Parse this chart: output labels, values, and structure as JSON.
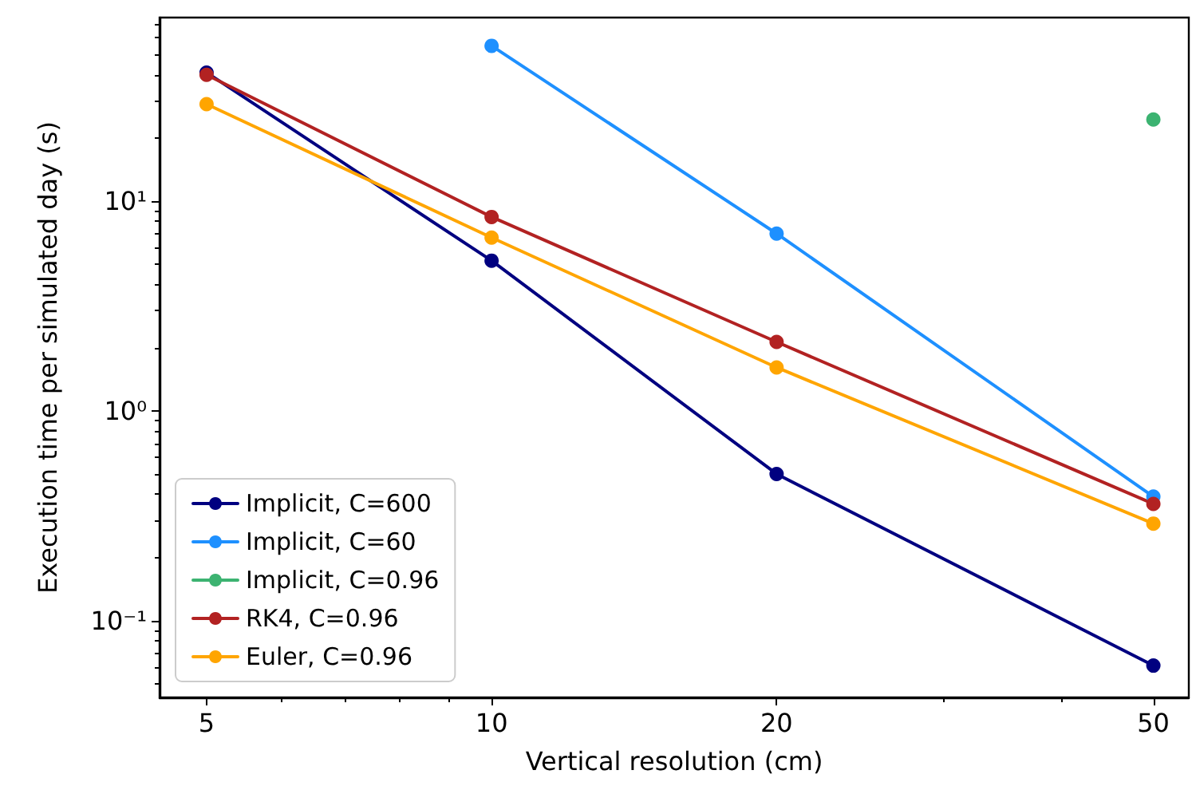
{
  "chart_data": {
    "type": "line",
    "xlabel": "Vertical resolution (cm)",
    "ylabel": "Execution time per simulated day (s)",
    "log": "xy",
    "grid": false,
    "legend": "bottom left",
    "marker": "circle",
    "line_style": "solid",
    "x": [
      5,
      10,
      20,
      50
    ],
    "xlim": [
      4.46,
      54.5
    ],
    "ylim": [
      0.043,
      75
    ],
    "xticks": [
      5,
      {
        "value": 6,
        "label": null
      },
      {
        "value": 7,
        "label": null
      },
      {
        "value": 8,
        "label": null
      },
      {
        "value": 9,
        "label": null
      },
      10,
      20,
      {
        "value": 30,
        "label": null
      },
      {
        "value": 40,
        "label": null
      },
      50
    ],
    "yticks": [
      {
        "value": 0.05,
        "label": null
      },
      {
        "value": 0.06,
        "label": null
      },
      {
        "value": 0.07,
        "label": null
      },
      {
        "value": 0.08,
        "label": null
      },
      {
        "value": 0.09,
        "label": null
      },
      {
        "value": 0.1,
        "label": "10⁻¹"
      },
      {
        "value": 0.2,
        "label": null
      },
      {
        "value": 0.3,
        "label": null
      },
      {
        "value": 0.4,
        "label": null
      },
      {
        "value": 0.5,
        "label": null
      },
      {
        "value": 0.6,
        "label": null
      },
      {
        "value": 0.7,
        "label": null
      },
      {
        "value": 0.8,
        "label": null
      },
      {
        "value": 0.9,
        "label": null
      },
      {
        "value": 1,
        "label": "10⁰"
      },
      {
        "value": 2,
        "label": null
      },
      {
        "value": 3,
        "label": null
      },
      {
        "value": 4,
        "label": null
      },
      {
        "value": 5,
        "label": null
      },
      {
        "value": 6,
        "label": null
      },
      {
        "value": 7,
        "label": null
      },
      {
        "value": 8,
        "label": null
      },
      {
        "value": 9,
        "label": null
      },
      {
        "value": 10,
        "label": "10¹"
      },
      {
        "value": 20,
        "label": null
      },
      {
        "value": 30,
        "label": null
      },
      {
        "value": 40,
        "label": null
      },
      {
        "value": 50,
        "label": null
      },
      {
        "value": 60,
        "label": null
      },
      {
        "value": 70,
        "label": null
      }
    ],
    "series": [
      {
        "name": "Implicit, C=600",
        "color": "#000080",
        "values": [
          41,
          5.2,
          0.5,
          0.061
        ]
      },
      {
        "name": "Implicit, C=60",
        "color": "#1e90ff",
        "values": [
          null,
          55,
          7.0,
          0.39
        ]
      },
      {
        "name": "Implicit, C=0.96",
        "color": "#3cb371",
        "values": [
          null,
          null,
          null,
          24.5
        ]
      },
      {
        "name": "RK4, C=0.96",
        "color": "#b22222",
        "values": [
          40,
          8.4,
          2.13,
          0.36
        ]
      },
      {
        "name": "Euler, C=0.96",
        "color": "#ffa500",
        "values": [
          29,
          6.7,
          1.61,
          0.29
        ]
      }
    ]
  }
}
